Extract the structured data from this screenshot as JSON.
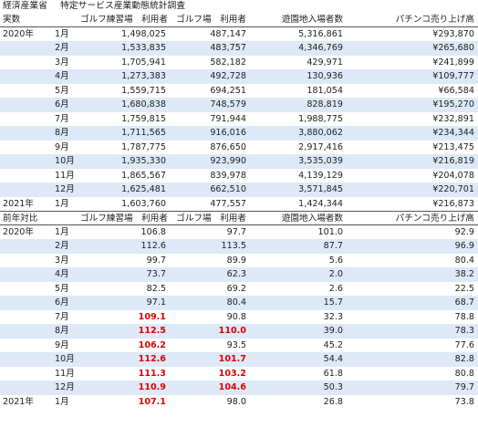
{
  "title": {
    "org": "経済産業省",
    "survey": "特定サービス産業動態統計調査"
  },
  "colors": {
    "stripe": "#dde9f7",
    "highlight": "#e00000"
  },
  "section_actual": {
    "label": "実数",
    "headers": [
      "ゴルフ練習場　利用者",
      "ゴルフ場　利用者",
      "遊園地入場者数",
      "パチンコ売り上げ高"
    ],
    "rows": [
      {
        "year": "2020年",
        "month": "1月",
        "vals": [
          "1,498,025",
          "487,147",
          "5,316,861",
          "¥293,870"
        ]
      },
      {
        "year": "",
        "month": "2月",
        "vals": [
          "1,533,835",
          "483,757",
          "4,346,769",
          "¥265,680"
        ]
      },
      {
        "year": "",
        "month": "3月",
        "vals": [
          "1,705,941",
          "582,182",
          "429,971",
          "¥241,899"
        ]
      },
      {
        "year": "",
        "month": "4月",
        "vals": [
          "1,273,383",
          "492,728",
          "130,936",
          "¥109,777"
        ]
      },
      {
        "year": "",
        "month": "5月",
        "vals": [
          "1,559,715",
          "694,251",
          "181,054",
          "¥66,584"
        ]
      },
      {
        "year": "",
        "month": "6月",
        "vals": [
          "1,680,838",
          "748,579",
          "828,819",
          "¥195,270"
        ]
      },
      {
        "year": "",
        "month": "7月",
        "vals": [
          "1,759,815",
          "791,944",
          "1,988,775",
          "¥232,891"
        ]
      },
      {
        "year": "",
        "month": "8月",
        "vals": [
          "1,711,565",
          "916,016",
          "3,880,062",
          "¥234,344"
        ]
      },
      {
        "year": "",
        "month": "9月",
        "vals": [
          "1,787,775",
          "876,650",
          "2,917,416",
          "¥213,475"
        ]
      },
      {
        "year": "",
        "month": "10月",
        "vals": [
          "1,935,330",
          "923,990",
          "3,535,039",
          "¥216,819"
        ]
      },
      {
        "year": "",
        "month": "11月",
        "vals": [
          "1,865,567",
          "839,978",
          "4,139,129",
          "¥204,078"
        ]
      },
      {
        "year": "",
        "month": "12月",
        "vals": [
          "1,625,481",
          "662,510",
          "3,571,845",
          "¥220,701"
        ]
      },
      {
        "year": "2021年",
        "month": "1月",
        "vals": [
          "1,603,760",
          "477,557",
          "1,424,344",
          "¥216,873"
        ]
      }
    ]
  },
  "section_yoy": {
    "label": "前年対比",
    "headers": [
      "ゴルフ練習場　利用者",
      "ゴルフ場　利用者",
      "遊園地入場者数",
      "パチンコ売り上げ高"
    ],
    "rows": [
      {
        "year": "2020年",
        "month": "1月",
        "vals": [
          "106.8",
          "97.7",
          "101.0",
          "92.9"
        ]
      },
      {
        "year": "",
        "month": "2月",
        "vals": [
          "112.6",
          "113.5",
          "87.7",
          "96.9"
        ]
      },
      {
        "year": "",
        "month": "3月",
        "vals": [
          "99.7",
          "89.9",
          "5.6",
          "80.4"
        ]
      },
      {
        "year": "",
        "month": "4月",
        "vals": [
          "73.7",
          "62.3",
          "2.0",
          "38.2"
        ]
      },
      {
        "year": "",
        "month": "5月",
        "vals": [
          "82.5",
          "69.2",
          "2.6",
          "22.5"
        ]
      },
      {
        "year": "",
        "month": "6月",
        "vals": [
          "97.1",
          "80.4",
          "15.7",
          "68.7"
        ]
      },
      {
        "year": "",
        "month": "7月",
        "vals": [
          "109.1",
          "90.8",
          "32.3",
          "78.8"
        ]
      },
      {
        "year": "",
        "month": "8月",
        "vals": [
          "112.5",
          "110.0",
          "39.0",
          "78.3"
        ]
      },
      {
        "year": "",
        "month": "9月",
        "vals": [
          "106.2",
          "93.5",
          "45.2",
          "77.6"
        ]
      },
      {
        "year": "",
        "month": "10月",
        "vals": [
          "112.6",
          "101.7",
          "54.4",
          "82.8"
        ]
      },
      {
        "year": "",
        "month": "11月",
        "vals": [
          "111.3",
          "103.2",
          "61.8",
          "80.8"
        ]
      },
      {
        "year": "",
        "month": "12月",
        "vals": [
          "110.9",
          "104.6",
          "50.3",
          "79.7"
        ]
      },
      {
        "year": "2021年",
        "month": "1月",
        "vals": [
          "107.1",
          "98.0",
          "26.8",
          "73.8"
        ]
      }
    ],
    "highlighted": [
      [
        6,
        0
      ],
      [
        7,
        0
      ],
      [
        8,
        0
      ],
      [
        9,
        0
      ],
      [
        10,
        0
      ],
      [
        11,
        0
      ],
      [
        12,
        0
      ],
      [
        7,
        1
      ],
      [
        9,
        1
      ],
      [
        10,
        1
      ],
      [
        11,
        1
      ]
    ]
  }
}
